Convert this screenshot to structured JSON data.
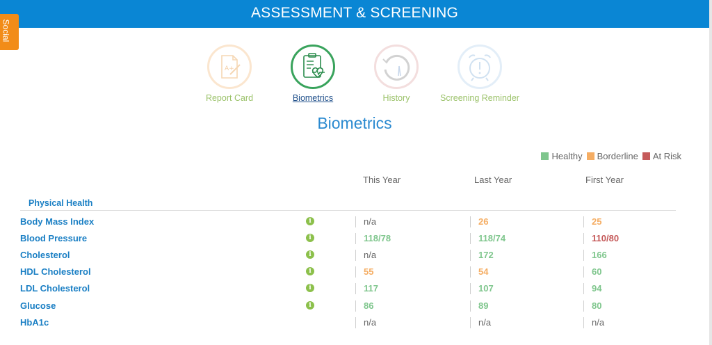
{
  "header": {
    "title": "ASSESSMENT & SCREENING"
  },
  "social_tab": {
    "label": "Social"
  },
  "nav": [
    {
      "label": "Report Card",
      "icon": "report-card-icon",
      "color": "#9bc26a",
      "active": false
    },
    {
      "label": "Biometrics",
      "icon": "biometrics-clipboard-icon",
      "color": "#2a9a52",
      "active": true
    },
    {
      "label": "History",
      "icon": "history-icon",
      "color": "#9bc26a",
      "active": false
    },
    {
      "label": "Screening Reminder",
      "icon": "alarm-clock-icon",
      "color": "#9bc26a",
      "active": false
    }
  ],
  "page_title": "Biometrics",
  "legend": {
    "healthy": "Healthy",
    "borderline": "Borderline",
    "at_risk": "At Risk"
  },
  "colors": {
    "healthy": "#7fc68d",
    "borderline": "#f5ad63",
    "at_risk": "#c55a5a",
    "header": "#0a86d4"
  },
  "columns": [
    "This Year",
    "Last Year",
    "First Year"
  ],
  "section": {
    "title": "Physical Health"
  },
  "rows": [
    {
      "label": "Body Mass Index",
      "info": true,
      "values": [
        {
          "v": "n/a",
          "s": "na"
        },
        {
          "v": "26",
          "s": "borderline"
        },
        {
          "v": "25",
          "s": "borderline"
        }
      ]
    },
    {
      "label": "Blood Pressure",
      "info": true,
      "values": [
        {
          "v": "118/78",
          "s": "healthy"
        },
        {
          "v": "118/74",
          "s": "healthy"
        },
        {
          "v": "110/80",
          "s": "atrisk"
        }
      ]
    },
    {
      "label": "Cholesterol",
      "info": true,
      "values": [
        {
          "v": "n/a",
          "s": "na"
        },
        {
          "v": "172",
          "s": "healthy"
        },
        {
          "v": "166",
          "s": "healthy"
        }
      ]
    },
    {
      "label": "HDL Cholesterol",
      "info": true,
      "values": [
        {
          "v": "55",
          "s": "borderline"
        },
        {
          "v": "54",
          "s": "borderline"
        },
        {
          "v": "60",
          "s": "healthy"
        }
      ]
    },
    {
      "label": "LDL Cholesterol",
      "info": true,
      "values": [
        {
          "v": "117",
          "s": "healthy"
        },
        {
          "v": "107",
          "s": "healthy"
        },
        {
          "v": "94",
          "s": "healthy"
        }
      ]
    },
    {
      "label": "Glucose",
      "info": true,
      "values": [
        {
          "v": "86",
          "s": "healthy"
        },
        {
          "v": "89",
          "s": "healthy"
        },
        {
          "v": "80",
          "s": "healthy"
        }
      ]
    },
    {
      "label": "HbA1c",
      "info": false,
      "values": [
        {
          "v": "n/a",
          "s": "na"
        },
        {
          "v": "n/a",
          "s": "na"
        },
        {
          "v": "n/a",
          "s": "na"
        }
      ]
    }
  ]
}
